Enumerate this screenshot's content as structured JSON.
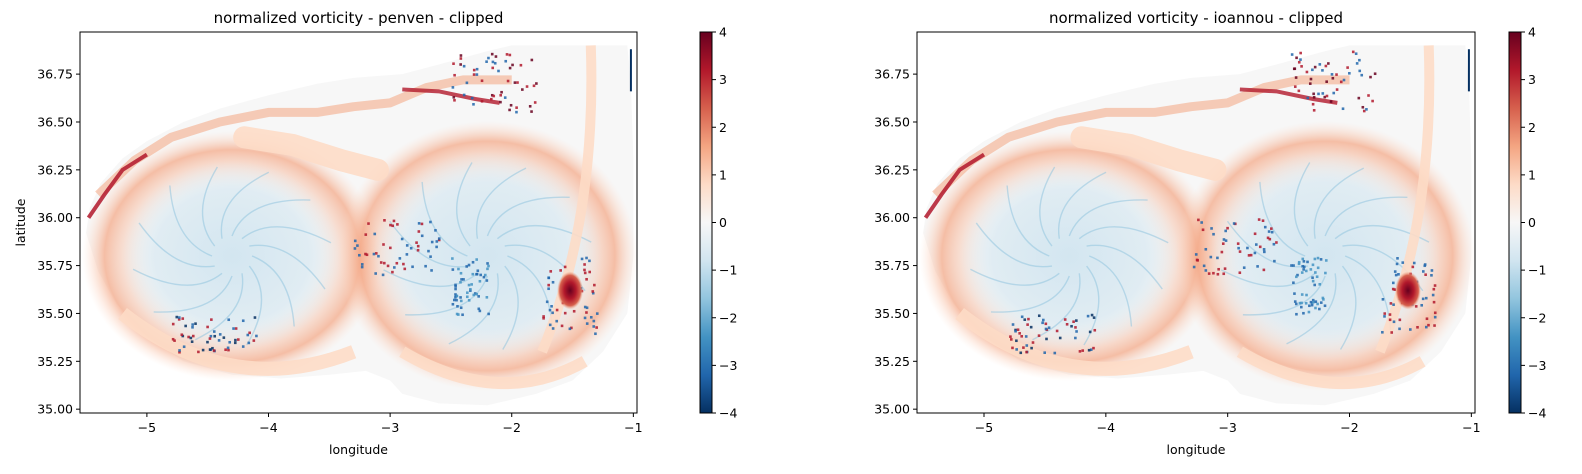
{
  "chart_data": [
    {
      "type": "heatmap",
      "title": "normalized vorticity - penven - clipped",
      "xlabel": "longitude",
      "ylabel": "latitude",
      "xlim": [
        -5.55,
        -0.97
      ],
      "ylim": [
        34.98,
        36.97
      ],
      "xticks": [
        -5,
        -4,
        -3,
        -2,
        -1
      ],
      "xtick_labels": [
        "−5",
        "−4",
        "−3",
        "−2",
        "−1"
      ],
      "yticks": [
        35.0,
        35.25,
        35.5,
        35.75,
        36.0,
        36.25,
        36.5,
        36.75
      ],
      "ytick_labels": [
        "35.00",
        "35.25",
        "35.50",
        "35.75",
        "36.00",
        "36.25",
        "36.50",
        "36.75"
      ],
      "colorbar": {
        "colormap": "RdBu_r",
        "range": [
          -4,
          4
        ],
        "ticks": [
          4,
          3,
          2,
          1,
          0,
          -1,
          -2,
          -3,
          -4
        ],
        "tick_labels": [
          "4",
          "3",
          "2",
          "1",
          "0",
          "−1",
          "−2",
          "−3",
          "−4"
        ]
      },
      "features": {
        "anticyclone_west_center": [
          -4.3,
          35.8
        ],
        "anticyclone_east_center": [
          -2.2,
          35.8
        ],
        "eddy_max": {
          "lon": -1.52,
          "lat": 35.62,
          "value": 4
        }
      }
    },
    {
      "type": "heatmap",
      "title": "normalized vorticity - ioannou - clipped",
      "xlabel": "longitude",
      "ylabel": "",
      "xlim": [
        -5.55,
        -0.97
      ],
      "ylim": [
        34.98,
        36.97
      ],
      "xticks": [
        -5,
        -4,
        -3,
        -2,
        -1
      ],
      "xtick_labels": [
        "−5",
        "−4",
        "−3",
        "−2",
        "−1"
      ],
      "yticks": [
        35.0,
        35.25,
        35.5,
        35.75,
        36.0,
        36.25,
        36.5,
        36.75
      ],
      "ytick_labels": [
        "35.00",
        "35.25",
        "35.50",
        "35.75",
        "36.00",
        "36.25",
        "36.50",
        "36.75"
      ],
      "colorbar": {
        "colormap": "RdBu_r",
        "range": [
          -4,
          4
        ],
        "ticks": [
          4,
          3,
          2,
          1,
          0,
          -1,
          -2,
          -3,
          -4
        ],
        "tick_labels": [
          "4",
          "3",
          "2",
          "1",
          "0",
          "−1",
          "−2",
          "−3",
          "−4"
        ]
      },
      "features": {
        "anticyclone_west_center": [
          -4.3,
          35.8
        ],
        "anticyclone_east_center": [
          -2.2,
          35.8
        ],
        "eddy_max": {
          "lon": -1.52,
          "lat": 35.62,
          "value": 4
        }
      }
    }
  ]
}
